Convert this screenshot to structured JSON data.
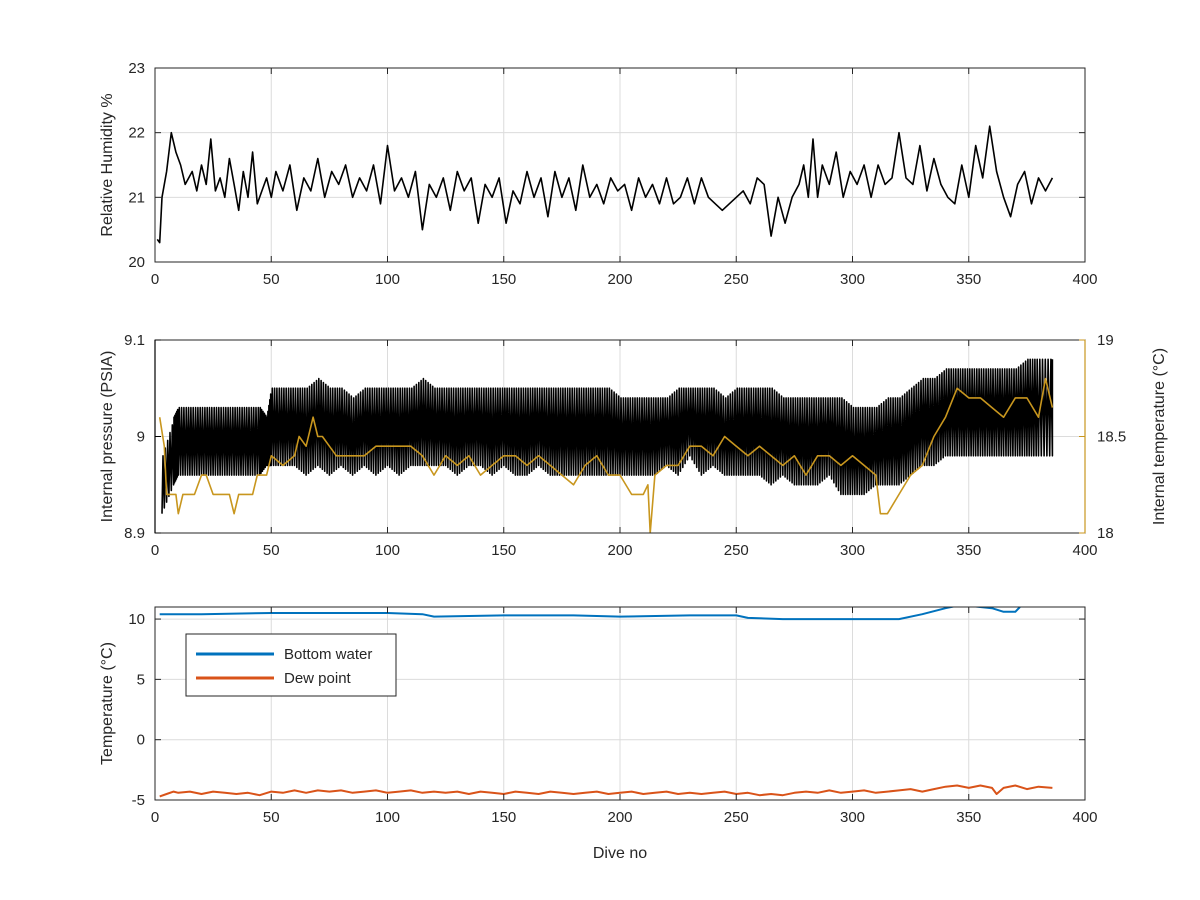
{
  "colors": {
    "black_series": "#000000",
    "temperature_series": "#C8961E",
    "bottom_water": "#0072BD",
    "dew_point": "#D95319",
    "axis": "#262626",
    "grid": "#dcdcdc"
  },
  "chart_data": [
    {
      "type": "line",
      "title": "",
      "xlabel": "",
      "ylabel": "Relative Humidity %",
      "xlim": [
        0,
        400
      ],
      "ylim": [
        20,
        23
      ],
      "xticks": [
        0,
        50,
        100,
        150,
        200,
        250,
        300,
        350,
        400
      ],
      "yticks": [
        20,
        21,
        22,
        23
      ],
      "grid": true,
      "series": [
        {
          "color": "#000000",
          "x": [
            1,
            2,
            3,
            5,
            7,
            9,
            11,
            13,
            16,
            18,
            20,
            22,
            24,
            26,
            28,
            30,
            32,
            34,
            36,
            38,
            40,
            42,
            44,
            46,
            48,
            50,
            52,
            55,
            58,
            61,
            64,
            67,
            70,
            73,
            76,
            79,
            82,
            85,
            88,
            91,
            94,
            97,
            100,
            103,
            106,
            109,
            112,
            115,
            118,
            121,
            124,
            127,
            130,
            133,
            136,
            139,
            142,
            145,
            148,
            151,
            154,
            157,
            160,
            163,
            166,
            169,
            172,
            175,
            178,
            181,
            184,
            187,
            190,
            193,
            196,
            199,
            202,
            205,
            208,
            211,
            214,
            217,
            220,
            223,
            226,
            229,
            232,
            235,
            238,
            241,
            244,
            247,
            250,
            253,
            256,
            259,
            262,
            265,
            268,
            271,
            274,
            277,
            279,
            281,
            283,
            285,
            287,
            290,
            293,
            296,
            299,
            302,
            305,
            308,
            311,
            314,
            317,
            320,
            323,
            326,
            329,
            332,
            335,
            338,
            341,
            344,
            347,
            350,
            353,
            356,
            359,
            362,
            365,
            368,
            371,
            374,
            377,
            380,
            383,
            386
          ],
          "y": [
            20.35,
            20.3,
            21.0,
            21.4,
            22.0,
            21.7,
            21.5,
            21.2,
            21.4,
            21.1,
            21.5,
            21.2,
            21.9,
            21.1,
            21.3,
            21.0,
            21.6,
            21.2,
            20.8,
            21.4,
            21.0,
            21.7,
            20.9,
            21.1,
            21.3,
            21.0,
            21.4,
            21.1,
            21.5,
            20.8,
            21.3,
            21.1,
            21.6,
            21.0,
            21.4,
            21.2,
            21.5,
            21.0,
            21.3,
            21.1,
            21.5,
            20.9,
            21.8,
            21.1,
            21.3,
            21.0,
            21.4,
            20.5,
            21.2,
            21.0,
            21.3,
            20.8,
            21.4,
            21.1,
            21.3,
            20.6,
            21.2,
            21.0,
            21.3,
            20.6,
            21.1,
            20.9,
            21.4,
            21.0,
            21.3,
            20.7,
            21.4,
            21.0,
            21.3,
            20.8,
            21.5,
            21.0,
            21.2,
            20.9,
            21.3,
            21.1,
            21.2,
            20.8,
            21.3,
            21.0,
            21.2,
            20.9,
            21.3,
            20.9,
            21.0,
            21.3,
            20.9,
            21.3,
            21.0,
            20.9,
            20.8,
            20.9,
            21.0,
            21.1,
            20.9,
            21.3,
            21.2,
            20.4,
            21.0,
            20.6,
            21.0,
            21.2,
            21.5,
            21.0,
            21.9,
            21.0,
            21.5,
            21.2,
            21.7,
            21.0,
            21.4,
            21.2,
            21.5,
            21.0,
            21.5,
            21.2,
            21.3,
            22.0,
            21.3,
            21.2,
            21.8,
            21.1,
            21.6,
            21.2,
            21.0,
            20.9,
            21.5,
            21.0,
            21.8,
            21.3,
            22.1,
            21.4,
            21.0,
            20.7,
            21.2,
            21.4,
            20.9,
            21.3,
            21.1,
            21.3
          ]
        }
      ]
    },
    {
      "type": "line",
      "title": "",
      "xlabel": "",
      "ylabel": "Internal pressure (PSIA)",
      "y2label": "Internal temperature (°C)",
      "xlim": [
        0,
        400
      ],
      "ylim": [
        8.9,
        9.1
      ],
      "y2lim": [
        18,
        19
      ],
      "xticks": [
        0,
        50,
        100,
        150,
        200,
        250,
        300,
        350,
        400
      ],
      "yticks": [
        8.9,
        9.0,
        9.1
      ],
      "ytick_labels": [
        "8.9",
        "9",
        "9.1"
      ],
      "y2ticks": [
        18,
        18.5,
        19
      ],
      "y2tick_labels": [
        "18",
        "18.5",
        "19"
      ],
      "grid": true,
      "series": [
        {
          "axis": "left",
          "color": "#000000",
          "band": true,
          "x": [
            3,
            8,
            10,
            15,
            20,
            25,
            30,
            35,
            40,
            45,
            48,
            50,
            55,
            60,
            65,
            70,
            75,
            80,
            85,
            90,
            95,
            100,
            105,
            110,
            115,
            120,
            125,
            130,
            135,
            140,
            145,
            150,
            155,
            160,
            165,
            170,
            175,
            180,
            185,
            190,
            195,
            200,
            205,
            210,
            215,
            220,
            225,
            230,
            235,
            240,
            245,
            250,
            255,
            260,
            265,
            270,
            275,
            280,
            285,
            290,
            295,
            300,
            305,
            310,
            315,
            320,
            325,
            330,
            335,
            340,
            345,
            350,
            355,
            360,
            365,
            370,
            375,
            380,
            386
          ],
          "high": [
            8.98,
            9.02,
            9.03,
            9.03,
            9.03,
            9.03,
            9.03,
            9.03,
            9.03,
            9.03,
            9.02,
            9.05,
            9.05,
            9.05,
            9.05,
            9.06,
            9.05,
            9.05,
            9.04,
            9.05,
            9.05,
            9.05,
            9.05,
            9.05,
            9.06,
            9.05,
            9.05,
            9.05,
            9.05,
            9.05,
            9.05,
            9.05,
            9.05,
            9.05,
            9.05,
            9.05,
            9.05,
            9.05,
            9.05,
            9.05,
            9.05,
            9.04,
            9.04,
            9.04,
            9.04,
            9.04,
            9.05,
            9.05,
            9.05,
            9.05,
            9.04,
            9.05,
            9.05,
            9.05,
            9.05,
            9.04,
            9.04,
            9.04,
            9.04,
            9.04,
            9.04,
            9.03,
            9.03,
            9.03,
            9.04,
            9.04,
            9.05,
            9.06,
            9.06,
            9.07,
            9.07,
            9.07,
            9.07,
            9.07,
            9.07,
            9.07,
            9.08,
            9.08,
            9.08
          ],
          "low": [
            8.92,
            8.95,
            8.96,
            8.96,
            8.96,
            8.96,
            8.96,
            8.96,
            8.96,
            8.96,
            8.97,
            8.97,
            8.97,
            8.97,
            8.96,
            8.97,
            8.96,
            8.97,
            8.96,
            8.97,
            8.96,
            8.97,
            8.96,
            8.97,
            8.97,
            8.97,
            8.97,
            8.96,
            8.97,
            8.97,
            8.96,
            8.97,
            8.96,
            8.96,
            8.97,
            8.96,
            8.96,
            8.96,
            8.96,
            8.96,
            8.96,
            8.96,
            8.96,
            8.96,
            8.96,
            8.97,
            8.96,
            8.98,
            8.96,
            8.97,
            8.96,
            8.96,
            8.96,
            8.96,
            8.95,
            8.96,
            8.95,
            8.95,
            8.95,
            8.96,
            8.94,
            8.94,
            8.94,
            8.95,
            8.95,
            8.95,
            8.96,
            8.97,
            8.97,
            8.98,
            8.98,
            8.98,
            8.98,
            8.98,
            8.98,
            8.98,
            8.98,
            8.98,
            8.98
          ]
        },
        {
          "axis": "right",
          "color": "#C8961E",
          "x": [
            2,
            4,
            5,
            7,
            9,
            10,
            12,
            14,
            15,
            17,
            20,
            22,
            25,
            28,
            30,
            32,
            34,
            36,
            38,
            40,
            42,
            44,
            46,
            48,
            50,
            55,
            60,
            62,
            65,
            68,
            70,
            72,
            75,
            78,
            80,
            85,
            90,
            95,
            100,
            105,
            110,
            115,
            120,
            125,
            130,
            135,
            140,
            145,
            150,
            155,
            160,
            165,
            170,
            175,
            180,
            185,
            190,
            195,
            200,
            205,
            210,
            212,
            213,
            215,
            220,
            225,
            230,
            235,
            240,
            245,
            250,
            255,
            260,
            265,
            270,
            275,
            280,
            285,
            290,
            295,
            300,
            305,
            310,
            312,
            315,
            320,
            325,
            330,
            335,
            340,
            345,
            350,
            355,
            360,
            365,
            370,
            375,
            380,
            383,
            386
          ],
          "y": [
            18.6,
            18.45,
            18.2,
            18.2,
            18.2,
            18.1,
            18.2,
            18.2,
            18.2,
            18.2,
            18.3,
            18.3,
            18.2,
            18.2,
            18.2,
            18.2,
            18.1,
            18.2,
            18.2,
            18.2,
            18.2,
            18.3,
            18.3,
            18.3,
            18.4,
            18.35,
            18.4,
            18.5,
            18.45,
            18.6,
            18.5,
            18.5,
            18.45,
            18.4,
            18.4,
            18.4,
            18.4,
            18.45,
            18.45,
            18.45,
            18.45,
            18.4,
            18.3,
            18.4,
            18.35,
            18.4,
            18.3,
            18.35,
            18.4,
            18.4,
            18.35,
            18.4,
            18.35,
            18.3,
            18.25,
            18.35,
            18.4,
            18.3,
            18.3,
            18.2,
            18.2,
            18.25,
            18.0,
            18.3,
            18.35,
            18.35,
            18.45,
            18.45,
            18.4,
            18.5,
            18.45,
            18.4,
            18.45,
            18.4,
            18.35,
            18.4,
            18.3,
            18.4,
            18.4,
            18.35,
            18.4,
            18.35,
            18.3,
            18.1,
            18.1,
            18.2,
            18.3,
            18.35,
            18.5,
            18.6,
            18.75,
            18.7,
            18.7,
            18.65,
            18.6,
            18.7,
            18.7,
            18.6,
            18.8,
            18.65
          ]
        }
      ]
    },
    {
      "type": "line",
      "title": "",
      "xlabel": "Dive no",
      "ylabel": "Temperature (°C)",
      "xlim": [
        0,
        400
      ],
      "ylim": [
        -5,
        11
      ],
      "xticks": [
        0,
        50,
        100,
        150,
        200,
        250,
        300,
        350,
        400
      ],
      "yticks": [
        -5,
        0,
        5,
        10
      ],
      "grid": true,
      "legend": "top-left",
      "series": [
        {
          "name": "Bottom water",
          "color": "#0072BD",
          "x": [
            2,
            20,
            50,
            100,
            115,
            120,
            150,
            180,
            200,
            230,
            250,
            255,
            270,
            290,
            300,
            310,
            320,
            330,
            340,
            345,
            350,
            360,
            365,
            370,
            372
          ],
          "y": [
            10.4,
            10.4,
            10.5,
            10.5,
            10.4,
            10.2,
            10.3,
            10.3,
            10.2,
            10.3,
            10.3,
            10.1,
            10.0,
            10.0,
            10.0,
            10.0,
            10.0,
            10.4,
            10.9,
            11.1,
            11.1,
            10.9,
            10.6,
            10.6,
            11.0
          ]
        },
        {
          "name": "Dew point",
          "color": "#D95319",
          "x": [
            2,
            5,
            8,
            10,
            15,
            20,
            25,
            30,
            35,
            40,
            45,
            50,
            55,
            60,
            65,
            70,
            75,
            80,
            85,
            90,
            95,
            100,
            105,
            110,
            115,
            120,
            125,
            130,
            135,
            140,
            145,
            150,
            155,
            160,
            165,
            170,
            175,
            180,
            185,
            190,
            195,
            200,
            205,
            210,
            215,
            220,
            225,
            230,
            235,
            240,
            245,
            250,
            255,
            260,
            265,
            270,
            275,
            280,
            285,
            290,
            295,
            300,
            305,
            310,
            315,
            320,
            325,
            330,
            335,
            340,
            345,
            350,
            355,
            360,
            362,
            365,
            370,
            375,
            380,
            386
          ],
          "y": [
            -4.7,
            -4.5,
            -4.3,
            -4.4,
            -4.3,
            -4.5,
            -4.3,
            -4.4,
            -4.5,
            -4.4,
            -4.6,
            -4.3,
            -4.4,
            -4.2,
            -4.4,
            -4.2,
            -4.3,
            -4.2,
            -4.4,
            -4.3,
            -4.2,
            -4.4,
            -4.3,
            -4.2,
            -4.4,
            -4.3,
            -4.4,
            -4.3,
            -4.5,
            -4.3,
            -4.4,
            -4.5,
            -4.3,
            -4.4,
            -4.5,
            -4.3,
            -4.4,
            -4.5,
            -4.4,
            -4.3,
            -4.5,
            -4.4,
            -4.3,
            -4.5,
            -4.4,
            -4.3,
            -4.5,
            -4.4,
            -4.5,
            -4.4,
            -4.3,
            -4.5,
            -4.4,
            -4.6,
            -4.5,
            -4.6,
            -4.4,
            -4.3,
            -4.4,
            -4.2,
            -4.4,
            -4.3,
            -4.2,
            -4.4,
            -4.3,
            -4.2,
            -4.1,
            -4.3,
            -4.1,
            -3.9,
            -3.8,
            -4.0,
            -3.8,
            -4.0,
            -4.5,
            -4.0,
            -3.8,
            -4.1,
            -3.9,
            -4.0
          ]
        }
      ]
    }
  ]
}
